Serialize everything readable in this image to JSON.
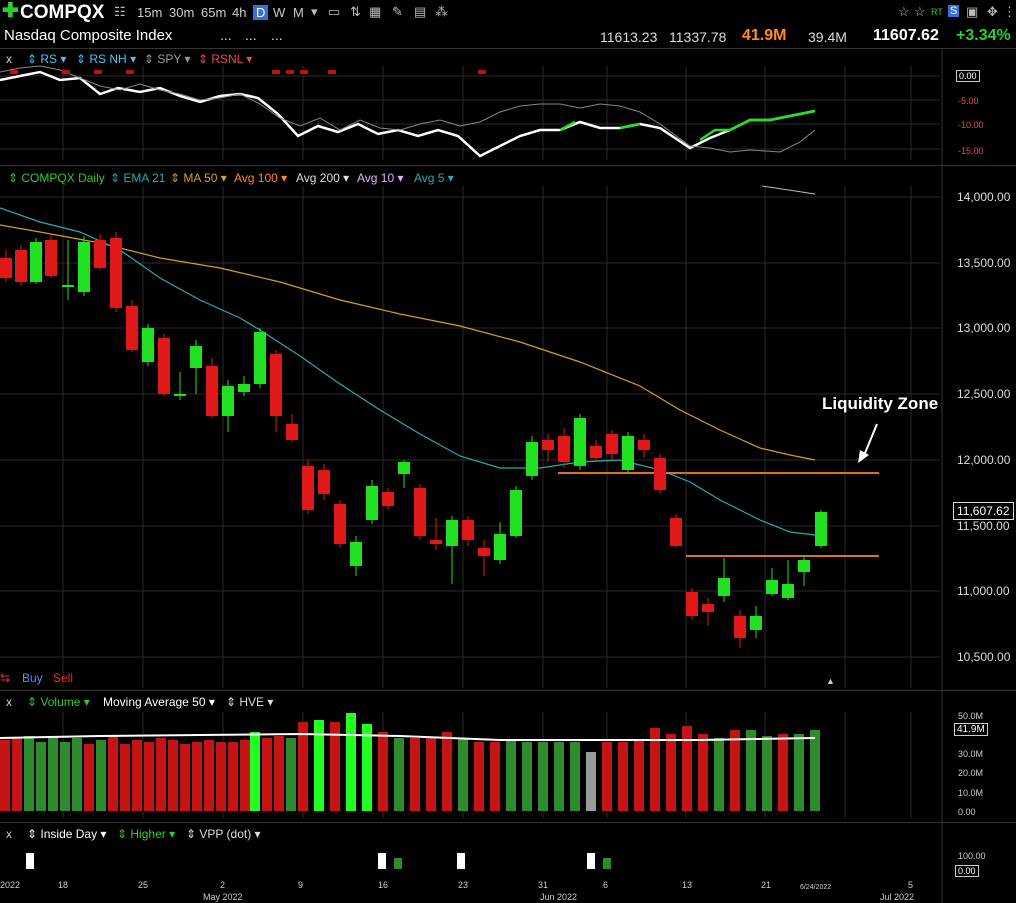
{
  "header": {
    "symbol": "COMPQX",
    "timeframes": [
      "15m",
      "30m",
      "65m",
      "4h",
      "D",
      "W",
      "M"
    ],
    "selected_timeframe": "D",
    "index_name": "Nasdaq Composite Index",
    "dots": [
      "...",
      "...",
      "..."
    ],
    "high": "11613.23",
    "low": "11337.78",
    "volume": "41.9M",
    "avg_volume": "39.4M",
    "last": "11607.62",
    "change_pct": "+3.34%",
    "rt_label": "RT",
    "s_label": "S"
  },
  "rs_panel": {
    "close_label": "x",
    "indicators": [
      "RS",
      "RS NH",
      "SPY",
      "RSNL"
    ],
    "axis": [
      "0.00",
      "-5.00",
      "-10.00",
      "-15.00"
    ]
  },
  "price_panel": {
    "indicators": [
      "COMPQX Daily",
      "EMA 21",
      "MA 50",
      "Avg 100",
      "Avg 200",
      "Avg 10",
      "Avg 5"
    ],
    "axis": [
      "14,000.00",
      "13,500.00",
      "13,000.00",
      "12,500.00",
      "12,000.00",
      "11,500.00",
      "11,000.00",
      "10,500.00"
    ],
    "last_tag": "11,607.62",
    "annotation": "Liquidity Zone",
    "buy_label": "Buy",
    "sell_label": "Sell"
  },
  "volume_panel": {
    "close_label": "x",
    "indicators": [
      "Volume",
      "Moving Average 50",
      "HVE"
    ],
    "axis": [
      "50.0M",
      "30.0M",
      "20.0M",
      "10.0M",
      "0.00"
    ],
    "tag": "41.9M"
  },
  "bottom_panel": {
    "close_label": "x",
    "indicators": [
      "Inside Day",
      "Higher",
      "VPP (dot)"
    ],
    "axis": [
      "100.00",
      "0.00"
    ]
  },
  "x_axis": {
    "labels": [
      "2022",
      "18",
      "25",
      "2",
      "9",
      "16",
      "23",
      "31",
      "6",
      "13",
      "21",
      "5"
    ],
    "months": [
      "May 2022",
      "Jun 2022",
      "Jul 2022"
    ],
    "marker": "6/24/2022"
  },
  "colors": {
    "up": "#22e022",
    "down": "#e01818",
    "ema21": "#2aa9b0",
    "ma50": "#d4a020",
    "accent": "#ff8c1a",
    "change": "#2ecc2e"
  }
}
